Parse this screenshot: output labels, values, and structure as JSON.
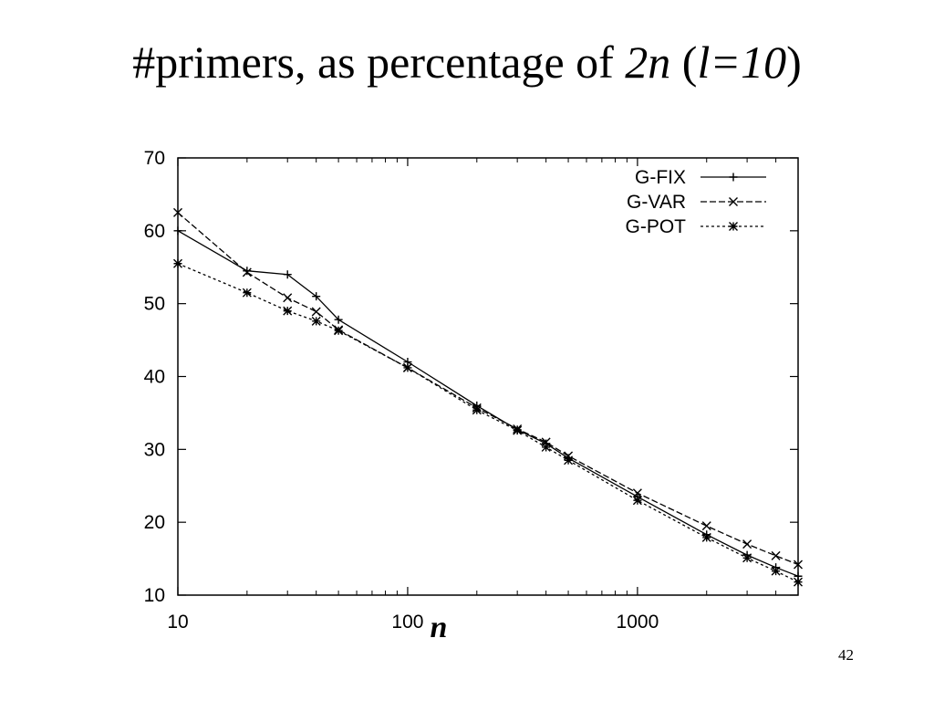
{
  "slide": {
    "title_prefix": "#primers, as percentage of ",
    "title_em1": "2n",
    "title_mid": " (",
    "title_em2": "l=10",
    "title_suffix": ")",
    "page_number": "42"
  },
  "chart_data": {
    "type": "line",
    "title": "",
    "xlabel": "n",
    "ylabel": "",
    "xscale": "log",
    "xlim": [
      10,
      5000
    ],
    "ylim": [
      10,
      70
    ],
    "x_ticks": [
      10,
      100,
      1000
    ],
    "x_tick_labels": [
      "10",
      "100",
      "1000"
    ],
    "y_ticks": [
      10,
      20,
      30,
      40,
      50,
      60,
      70
    ],
    "y_tick_labels": [
      "10",
      "20",
      "30",
      "40",
      "50",
      "60",
      "70"
    ],
    "legend_position": "top-right",
    "grid": false,
    "series": [
      {
        "name": "G-FIX",
        "marker": "plus",
        "dash": "",
        "x": [
          10,
          20,
          30,
          40,
          50,
          100,
          200,
          300,
          400,
          500,
          1000,
          2000,
          3000,
          4000,
          5000
        ],
        "y": [
          60.0,
          54.5,
          54.0,
          51.0,
          47.8,
          42.0,
          36.0,
          32.7,
          30.8,
          28.8,
          23.5,
          18.3,
          15.5,
          13.8,
          12.6
        ]
      },
      {
        "name": "G-VAR",
        "marker": "x",
        "dash": "7,3",
        "x": [
          10,
          20,
          30,
          40,
          50,
          100,
          200,
          300,
          400,
          500,
          1000,
          2000,
          3000,
          4000,
          5000
        ],
        "y": [
          62.5,
          54.3,
          50.8,
          48.9,
          46.4,
          41.2,
          35.7,
          32.8,
          31.0,
          29.1,
          24.0,
          19.5,
          17.0,
          15.4,
          14.2
        ]
      },
      {
        "name": "G-POT",
        "marker": "star",
        "dash": "3,3",
        "x": [
          10,
          20,
          30,
          40,
          50,
          100,
          200,
          300,
          400,
          500,
          1000,
          2000,
          3000,
          4000,
          5000
        ],
        "y": [
          55.5,
          51.5,
          49.0,
          47.6,
          46.3,
          41.2,
          35.4,
          32.6,
          30.3,
          28.5,
          23.0,
          17.9,
          15.1,
          13.3,
          11.8
        ]
      }
    ]
  }
}
